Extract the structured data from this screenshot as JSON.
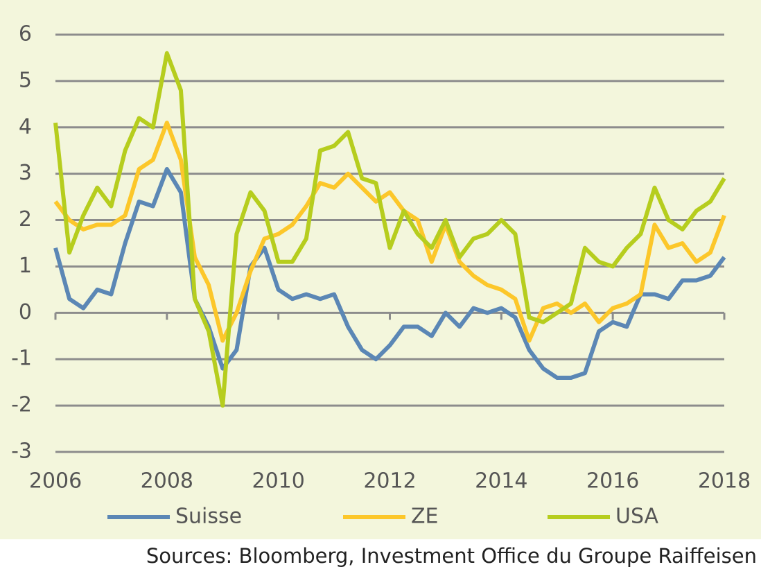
{
  "chart_data": {
    "type": "line",
    "x": [
      2006,
      2006.25,
      2006.5,
      2006.75,
      2007,
      2007.25,
      2007.5,
      2007.75,
      2008,
      2008.25,
      2008.5,
      2008.75,
      2009,
      2009.25,
      2009.5,
      2009.75,
      2010,
      2010.25,
      2010.5,
      2010.75,
      2011,
      2011.25,
      2011.5,
      2011.75,
      2012,
      2012.25,
      2012.5,
      2012.75,
      2013,
      2013.25,
      2013.5,
      2013.75,
      2014,
      2014.25,
      2014.5,
      2014.75,
      2015,
      2015.25,
      2015.5,
      2015.75,
      2016,
      2016.25,
      2016.5,
      2016.75,
      2017,
      2017.25,
      2017.5,
      2017.75,
      2018
    ],
    "series": [
      {
        "name": "Suisse",
        "color": "#5b87b5",
        "values": [
          1.4,
          0.3,
          0.1,
          0.5,
          0.4,
          1.5,
          2.4,
          2.3,
          3.1,
          2.6,
          0.3,
          -0.3,
          -1.2,
          -0.8,
          1.0,
          1.4,
          0.5,
          0.3,
          0.4,
          0.3,
          0.4,
          -0.3,
          -0.8,
          -1.0,
          -0.7,
          -0.3,
          -0.3,
          -0.5,
          0.0,
          -0.3,
          0.1,
          0.0,
          0.1,
          -0.1,
          -0.8,
          -1.2,
          -1.4,
          -1.4,
          -1.3,
          -0.4,
          -0.2,
          -0.3,
          0.4,
          0.4,
          0.3,
          0.7,
          0.7,
          0.8,
          1.2
        ]
      },
      {
        "name": "ZE",
        "color": "#fcc72a",
        "values": [
          2.4,
          2.0,
          1.8,
          1.9,
          1.9,
          2.1,
          3.1,
          3.3,
          4.1,
          3.3,
          1.2,
          0.6,
          -0.6,
          0.0,
          0.9,
          1.6,
          1.7,
          1.9,
          2.3,
          2.8,
          2.7,
          3.0,
          2.7,
          2.4,
          2.6,
          2.2,
          2.0,
          1.1,
          1.9,
          1.1,
          0.8,
          0.6,
          0.5,
          0.3,
          -0.6,
          0.1,
          0.2,
          0.0,
          0.2,
          -0.2,
          0.1,
          0.2,
          0.4,
          1.9,
          1.4,
          1.5,
          1.1,
          1.3,
          2.1
        ]
      },
      {
        "name": "USA",
        "color": "#b6cd1e",
        "values": [
          4.1,
          1.3,
          2.1,
          2.7,
          2.3,
          3.5,
          4.2,
          4.0,
          5.6,
          4.8,
          0.3,
          -0.4,
          -2.0,
          1.7,
          2.6,
          2.2,
          1.1,
          1.1,
          1.6,
          3.5,
          3.6,
          3.9,
          2.9,
          2.8,
          1.4,
          2.2,
          1.7,
          1.4,
          2.0,
          1.2,
          1.6,
          1.7,
          2.0,
          1.7,
          -0.1,
          -0.2,
          0.0,
          0.2,
          1.4,
          1.1,
          1.0,
          1.4,
          1.7,
          2.7,
          2.0,
          1.8,
          2.2,
          2.4,
          2.9
        ]
      }
    ],
    "xlim": [
      2006,
      2018
    ],
    "xticks": [
      2006,
      2008,
      2010,
      2012,
      2014,
      2016,
      2018
    ],
    "ylim": [
      -3,
      6
    ],
    "yticks": [
      -3,
      -2,
      -1,
      0,
      1,
      2,
      3,
      4,
      5,
      6
    ],
    "grid": true,
    "legend": "bottom",
    "source": "Sources: Bloomberg, Investment Office du Groupe Raiffeisen"
  }
}
